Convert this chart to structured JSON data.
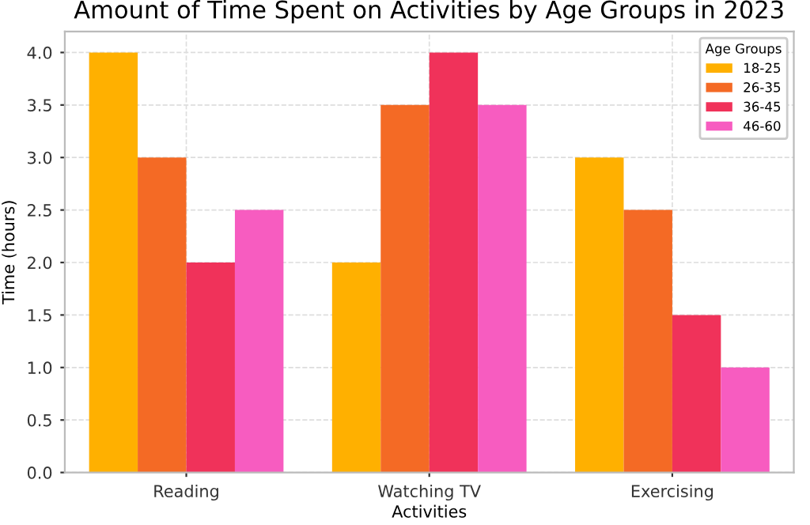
{
  "chart_data": {
    "type": "bar",
    "title": "Amount of Time Spent on Activities by Age Groups in 2023",
    "xlabel": "Activities",
    "ylabel": "Time (hours)",
    "legend_title": "Age Groups",
    "categories": [
      "Reading",
      "Watching TV",
      "Exercising"
    ],
    "series": [
      {
        "name": "18-25",
        "color": "#ffb000",
        "values": [
          4.0,
          2.0,
          3.0
        ]
      },
      {
        "name": "26-35",
        "color": "#f46a25",
        "values": [
          3.0,
          3.5,
          2.5
        ]
      },
      {
        "name": "36-45",
        "color": "#f0325a",
        "values": [
          2.0,
          4.0,
          1.5
        ]
      },
      {
        "name": "46-60",
        "color": "#f75cc0",
        "values": [
          2.5,
          3.5,
          1.0
        ]
      }
    ],
    "ylim": [
      0,
      4.2
    ],
    "yticks": [
      {
        "value": 0,
        "label": "0.0"
      },
      {
        "value": 0.5,
        "label": "0.5"
      },
      {
        "value": 1,
        "label": "1.0"
      },
      {
        "value": 1.5,
        "label": "1.5"
      },
      {
        "value": 2,
        "label": "2.0"
      },
      {
        "value": 2.5,
        "label": "2.5"
      },
      {
        "value": 3,
        "label": "3.0"
      },
      {
        "value": 3.5,
        "label": "3.5"
      },
      {
        "value": 4,
        "label": "4.0"
      }
    ],
    "grid": true,
    "legend": "top right"
  }
}
